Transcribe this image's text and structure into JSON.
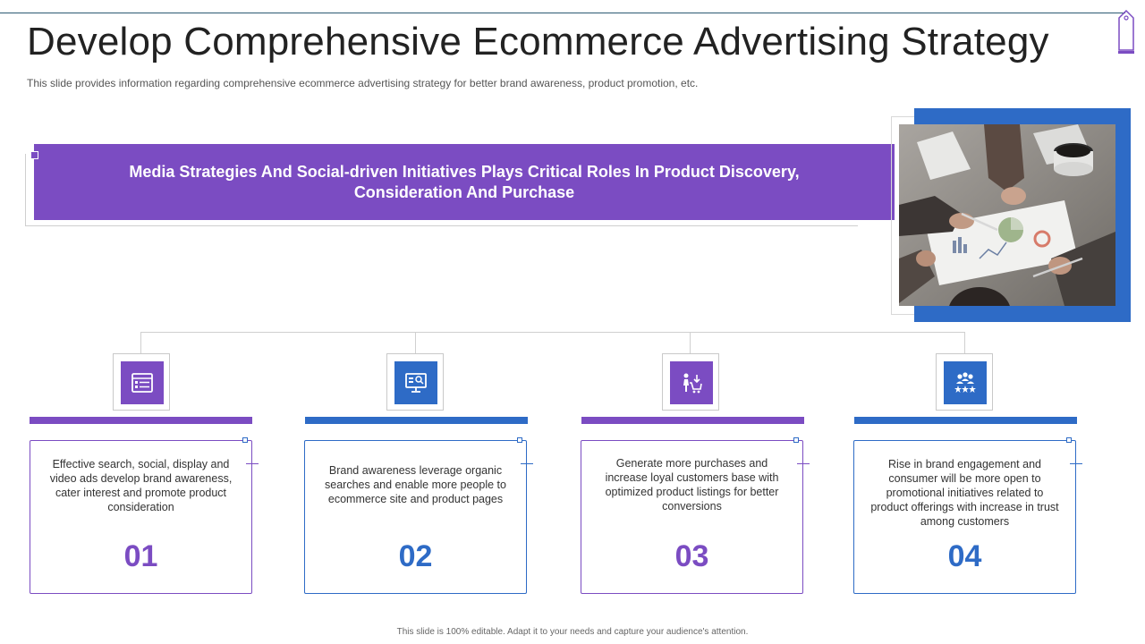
{
  "slide": {
    "title": "Develop Comprehensive Ecommerce Advertising Strategy",
    "subtitle": "This slide provides information regarding comprehensive ecommerce advertising strategy for better brand awareness, product promotion, etc.",
    "banner_line1": "Media Strategies And Social-driven Initiatives Plays Critical Roles In Product Discovery,",
    "banner_line2": "Consideration And Purchase",
    "footer": "This slide is 100% editable. Adapt it to your needs and capture your audience's attention."
  },
  "colors": {
    "purple": "#7b4cc2",
    "blue": "#2e6bc6"
  },
  "cards": [
    {
      "number": "01",
      "text": "Effective search, social, display and video ads develop brand awareness, cater interest and promote product consideration",
      "icon": "checklist-icon",
      "color": "#7b4cc2"
    },
    {
      "number": "02",
      "text": "Brand awareness leverage organic searches and enable more people to ecommerce site and product pages",
      "icon": "monitor-search-icon",
      "color": "#2e6bc6"
    },
    {
      "number": "03",
      "text": "Generate more purchases and increase loyal customers base with optimized product listings for better conversions",
      "icon": "shopping-cart-person-icon",
      "color": "#7b4cc2"
    },
    {
      "number": "04",
      "text": "Rise in brand engagement and consumer will be more open to promotional initiatives related to product offerings with increase in trust among customers",
      "icon": "group-stars-icon",
      "color": "#2e6bc6"
    }
  ]
}
